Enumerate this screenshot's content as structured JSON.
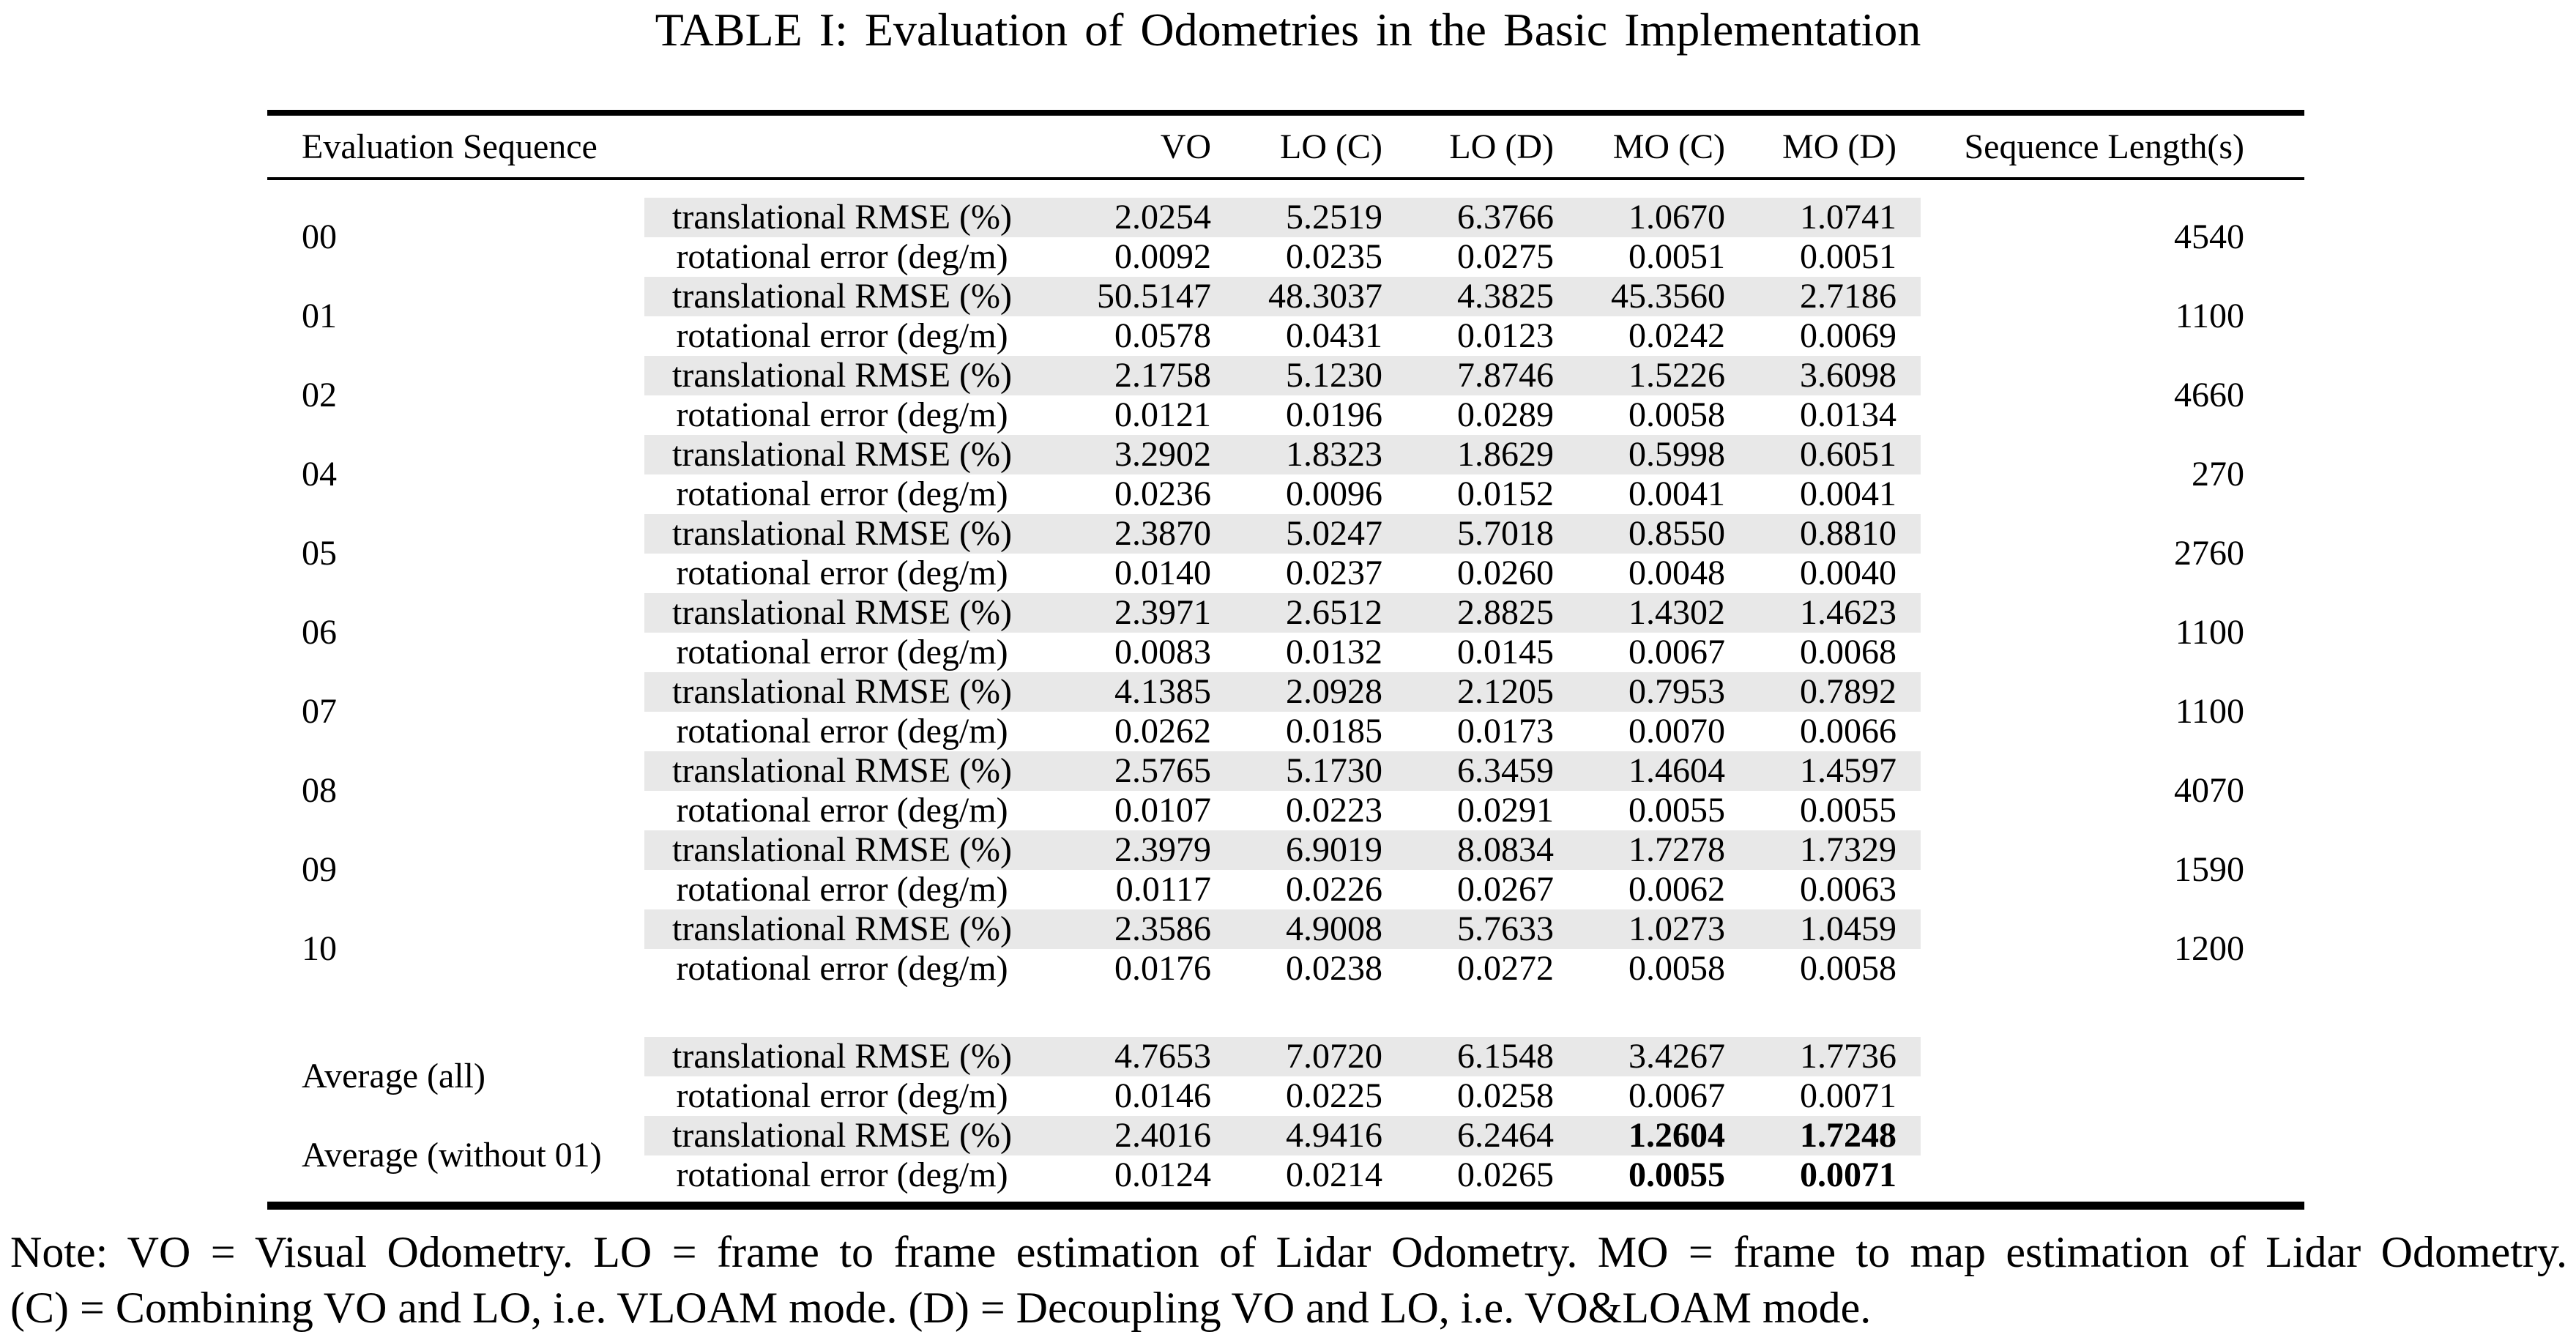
{
  "title": "TABLE I: Evaluation of Odometries in the Basic Implementation",
  "table": {
    "headers": [
      "Evaluation Sequence",
      "VO",
      "LO (C)",
      "LO (D)",
      "MO (C)",
      "MO (D)",
      "Sequence Length(s)"
    ],
    "metric_labels": {
      "translational": "translational RMSE (%)",
      "rotational": "rotational error (deg/m)"
    },
    "sequences": [
      {
        "id": "00",
        "length": "4540",
        "translational": [
          "2.0254",
          "5.2519",
          "6.3766",
          "1.0670",
          "1.0741"
        ],
        "rotational": [
          "0.0092",
          "0.0235",
          "0.0275",
          "0.0051",
          "0.0051"
        ]
      },
      {
        "id": "01",
        "length": "1100",
        "translational": [
          "50.5147",
          "48.3037",
          "4.3825",
          "45.3560",
          "2.7186"
        ],
        "rotational": [
          "0.0578",
          "0.0431",
          "0.0123",
          "0.0242",
          "0.0069"
        ]
      },
      {
        "id": "02",
        "length": "4660",
        "translational": [
          "2.1758",
          "5.1230",
          "7.8746",
          "1.5226",
          "3.6098"
        ],
        "rotational": [
          "0.0121",
          "0.0196",
          "0.0289",
          "0.0058",
          "0.0134"
        ]
      },
      {
        "id": "04",
        "length": "270",
        "translational": [
          "3.2902",
          "1.8323",
          "1.8629",
          "0.5998",
          "0.6051"
        ],
        "rotational": [
          "0.0236",
          "0.0096",
          "0.0152",
          "0.0041",
          "0.0041"
        ]
      },
      {
        "id": "05",
        "length": "2760",
        "translational": [
          "2.3870",
          "5.0247",
          "5.7018",
          "0.8550",
          "0.8810"
        ],
        "rotational": [
          "0.0140",
          "0.0237",
          "0.0260",
          "0.0048",
          "0.0040"
        ]
      },
      {
        "id": "06",
        "length": "1100",
        "translational": [
          "2.3971",
          "2.6512",
          "2.8825",
          "1.4302",
          "1.4623"
        ],
        "rotational": [
          "0.0083",
          "0.0132",
          "0.0145",
          "0.0067",
          "0.0068"
        ]
      },
      {
        "id": "07",
        "length": "1100",
        "translational": [
          "4.1385",
          "2.0928",
          "2.1205",
          "0.7953",
          "0.7892"
        ],
        "rotational": [
          "0.0262",
          "0.0185",
          "0.0173",
          "0.0070",
          "0.0066"
        ]
      },
      {
        "id": "08",
        "length": "4070",
        "translational": [
          "2.5765",
          "5.1730",
          "6.3459",
          "1.4604",
          "1.4597"
        ],
        "rotational": [
          "0.0107",
          "0.0223",
          "0.0291",
          "0.0055",
          "0.0055"
        ]
      },
      {
        "id": "09",
        "length": "1590",
        "translational": [
          "2.3979",
          "6.9019",
          "8.0834",
          "1.7278",
          "1.7329"
        ],
        "rotational": [
          "0.0117",
          "0.0226",
          "0.0267",
          "0.0062",
          "0.0063"
        ]
      },
      {
        "id": "10",
        "length": "1200",
        "translational": [
          "2.3586",
          "4.9008",
          "5.7633",
          "1.0273",
          "1.0459"
        ],
        "rotational": [
          "0.0176",
          "0.0238",
          "0.0272",
          "0.0058",
          "0.0058"
        ]
      }
    ],
    "averages": [
      {
        "id": "Average (all)",
        "length": "",
        "translational": [
          "4.7653",
          "7.0720",
          "6.1548",
          "3.4267",
          "1.7736"
        ],
        "rotational": [
          "0.0146",
          "0.0225",
          "0.0258",
          "0.0067",
          "0.0071"
        ],
        "bold": []
      },
      {
        "id": "Average (without 01)",
        "length": "",
        "translational": [
          "2.4016",
          "4.9416",
          "6.2464",
          "1.2604",
          "1.7248"
        ],
        "rotational": [
          "0.0124",
          "0.0214",
          "0.0265",
          "0.0055",
          "0.0071"
        ],
        "bold": [
          3,
          4
        ]
      }
    ]
  },
  "note_line1": "Note: VO = Visual Odometry. LO = frame to frame estimation of Lidar Odometry. MO = frame to map estimation of Lidar Odometry.",
  "note_line2": "(C) = Combining VO and LO, i.e. VLOAM mode. (D) = Decoupling VO and LO, i.e. VO&LOAM mode.",
  "colors": {
    "row_shade": "#e8e8e8",
    "text": "#000000",
    "background": "#ffffff"
  }
}
